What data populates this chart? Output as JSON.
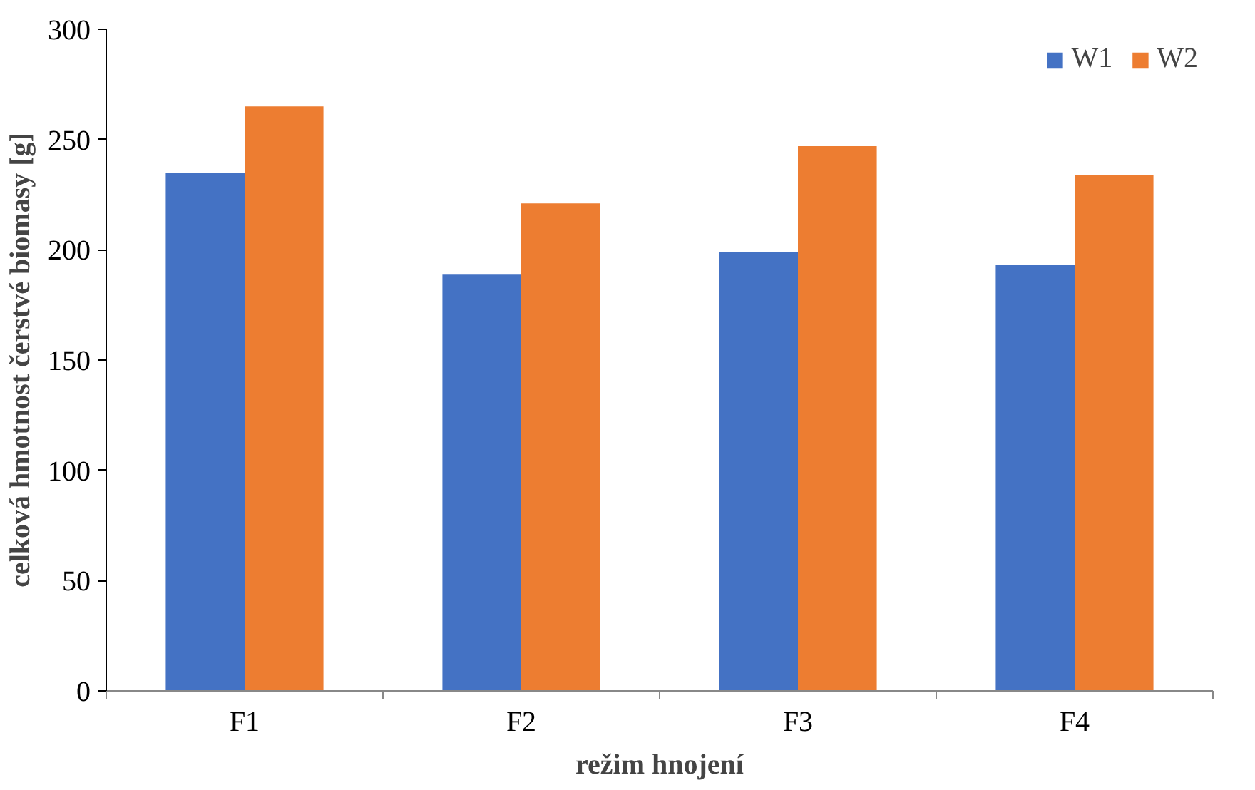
{
  "chart_data": {
    "type": "bar",
    "xlabel": "režim hnojení",
    "ylabel": "celková hmotnost čerstvé biomasy [g]",
    "categories": [
      "F1",
      "F2",
      "F3",
      "F4"
    ],
    "series": [
      {
        "name": "W1",
        "color": "#4472c4",
        "values": [
          235,
          189,
          199,
          193
        ]
      },
      {
        "name": "W2",
        "color": "#ed7d31",
        "values": [
          265,
          221,
          247,
          234
        ]
      }
    ],
    "ylim": [
      0,
      300
    ],
    "yticks": [
      0,
      50,
      100,
      150,
      200,
      250,
      300
    ],
    "grid": false,
    "legend": "top right"
  }
}
